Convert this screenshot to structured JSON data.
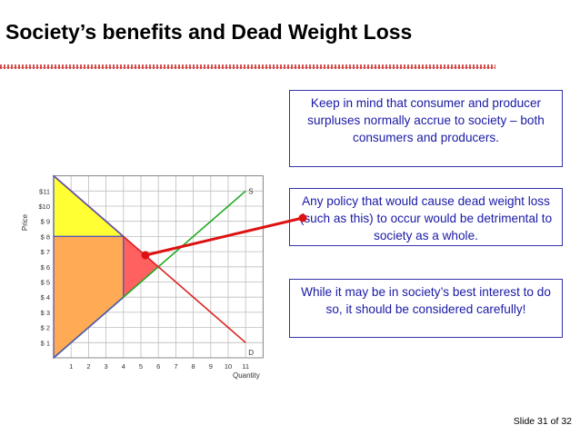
{
  "title": "Society’s benefits and Dead Weight Loss",
  "notes": [
    "Keep in mind that consumer and producer surpluses normally accrue to society – both consumers and producers.",
    "Any policy that would cause dead weight loss (such as this) to occur would be detrimental to society as a whole.",
    "While it may be in society’s best interest to do so, it should be considered carefully!"
  ],
  "slide_number": "Slide 31 of 32",
  "chart": {
    "y_axis_label": "Price",
    "x_axis_label": "Quantity",
    "y_ticks": [
      "$ 1",
      "$ 2",
      "$ 3",
      "$ 4",
      "$ 5",
      "$ 6",
      "$ 7",
      "$ 8",
      "$ 9",
      "$10",
      "$11"
    ],
    "x_ticks": [
      "1",
      "2",
      "3",
      "4",
      "5",
      "6",
      "7",
      "8",
      "9",
      "10",
      "11"
    ],
    "supply_label": "S",
    "demand_label": "D",
    "supply": {
      "from": [
        0,
        0
      ],
      "to": [
        11,
        11
      ]
    },
    "demand": {
      "from": [
        0,
        12
      ],
      "to": [
        11,
        1
      ]
    },
    "quantity_limit": 4,
    "regions": {
      "consumer_surplus": {
        "color": "#ffff33",
        "points": [
          [
            0,
            12
          ],
          [
            4,
            8
          ],
          [
            0,
            8
          ]
        ]
      },
      "producer_surplus": {
        "color": "#ffaa55",
        "points": [
          [
            0,
            8
          ],
          [
            4,
            8
          ],
          [
            4,
            4
          ],
          [
            0,
            0
          ]
        ]
      },
      "dead_weight_loss": {
        "color": "#ff6060",
        "points": [
          [
            4,
            8
          ],
          [
            4,
            4
          ],
          [
            6,
            6
          ]
        ]
      }
    },
    "colors": {
      "supply": "#22aa22",
      "demand": "#dd2222",
      "outline": "#5555bb",
      "grid": "#bdbdbd"
    }
  },
  "pointer_color": "#dd1111"
}
